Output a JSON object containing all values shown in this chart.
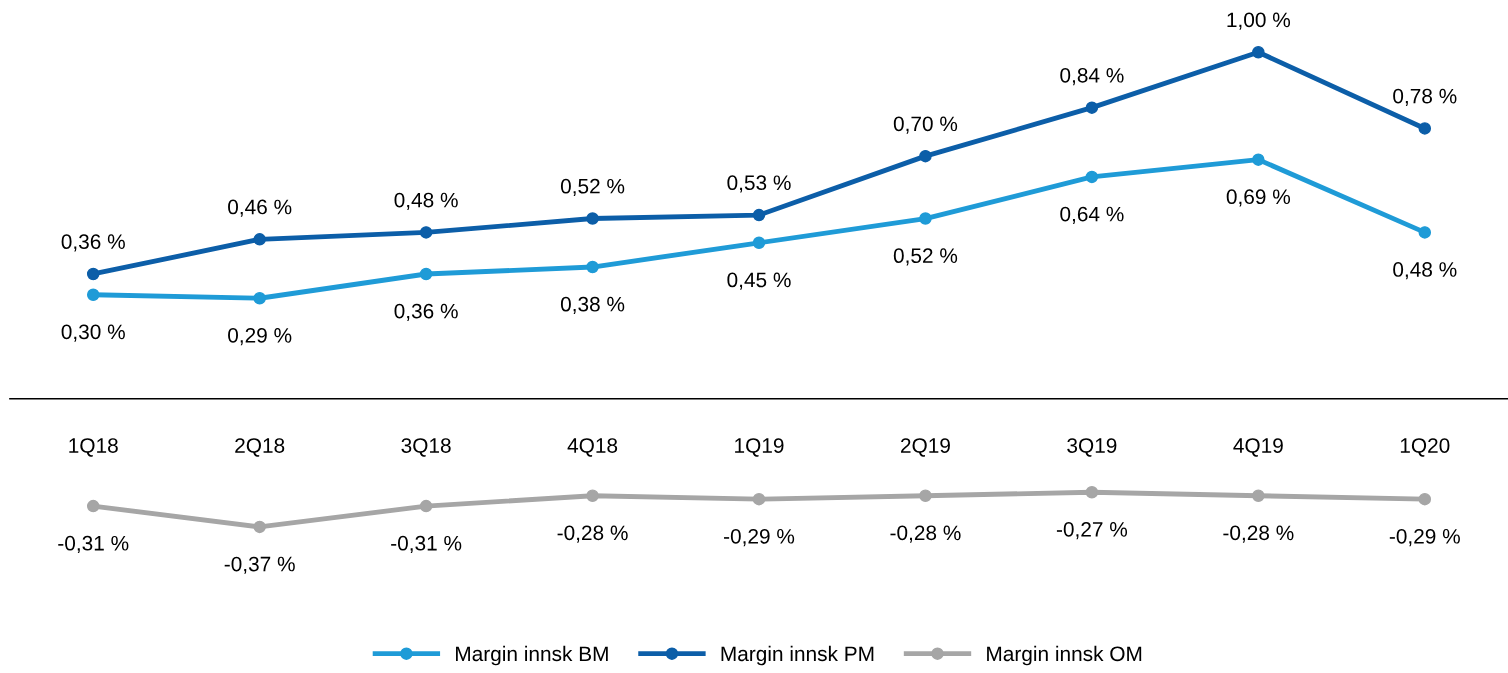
{
  "chart_data": {
    "type": "line",
    "categories": [
      "1Q18",
      "2Q18",
      "3Q18",
      "4Q18",
      "1Q19",
      "2Q19",
      "3Q19",
      "4Q19",
      "1Q20"
    ],
    "series": [
      {
        "name": "Margin innsk BM",
        "color": "#1f9bd7",
        "values": [
          0.3,
          0.29,
          0.36,
          0.38,
          0.45,
          0.52,
          0.64,
          0.69,
          0.48
        ],
        "value_labels": [
          "0,30 %",
          "0,29 %",
          "0,36 %",
          "0,38 %",
          "0,45 %",
          "0,52 %",
          "0,64 %",
          "0,69 %",
          "0,48 %"
        ]
      },
      {
        "name": "Margin innsk PM",
        "color": "#0c5ea8",
        "values": [
          0.36,
          0.46,
          0.48,
          0.52,
          0.53,
          0.7,
          0.84,
          1.0,
          0.78
        ],
        "value_labels": [
          "0,36 %",
          "0,46 %",
          "0,48 %",
          "0,52 %",
          "0,53 %",
          "0,70 %",
          "0,84 %",
          "1,00 %",
          "0,78 %"
        ]
      },
      {
        "name": "Margin innsk OM",
        "color": "#a6a6a6",
        "values": [
          -0.31,
          -0.37,
          -0.31,
          -0.28,
          -0.29,
          -0.28,
          -0.27,
          -0.28,
          -0.29
        ],
        "value_labels": [
          "-0,31 %",
          "-0,37 %",
          "-0,31 %",
          "-0,28 %",
          "-0,29 %",
          "-0,28 %",
          "-0,27 %",
          "-0,28 %",
          "-0,29 %"
        ]
      }
    ],
    "tick_labels": "x",
    "marker": "circle",
    "line_style": "solid",
    "grid": false,
    "legend": "bottom"
  }
}
